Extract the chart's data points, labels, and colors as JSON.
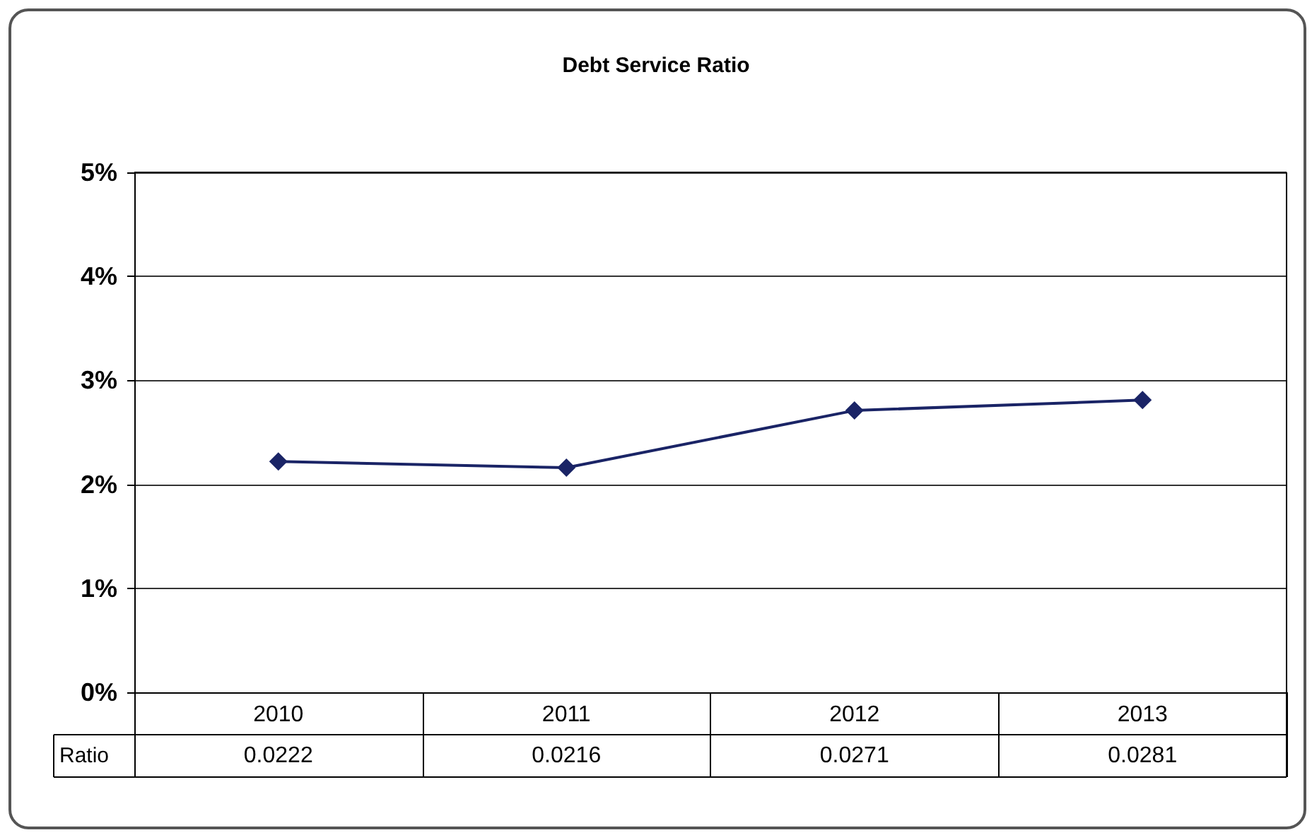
{
  "chart_data": {
    "type": "line",
    "title": "Debt Service Ratio",
    "categories": [
      "2010",
      "2011",
      "2012",
      "2013"
    ],
    "series": [
      {
        "name": "Ratio",
        "color": "#1a2466",
        "values": [
          0.0222,
          0.0216,
          0.0271,
          0.0281
        ]
      }
    ],
    "ylim": [
      0,
      0.05
    ],
    "yticks": [
      {
        "value": 0,
        "label": "0%"
      },
      {
        "value": 0.01,
        "label": "1%"
      },
      {
        "value": 0.02,
        "label": "2%"
      },
      {
        "value": 0.03,
        "label": "3%"
      },
      {
        "value": 0.04,
        "label": "4%"
      },
      {
        "value": 0.05,
        "label": "5%"
      }
    ],
    "grid": "y",
    "legend": false,
    "marker": "diamond",
    "line_style": "solid",
    "data_labels": true
  }
}
